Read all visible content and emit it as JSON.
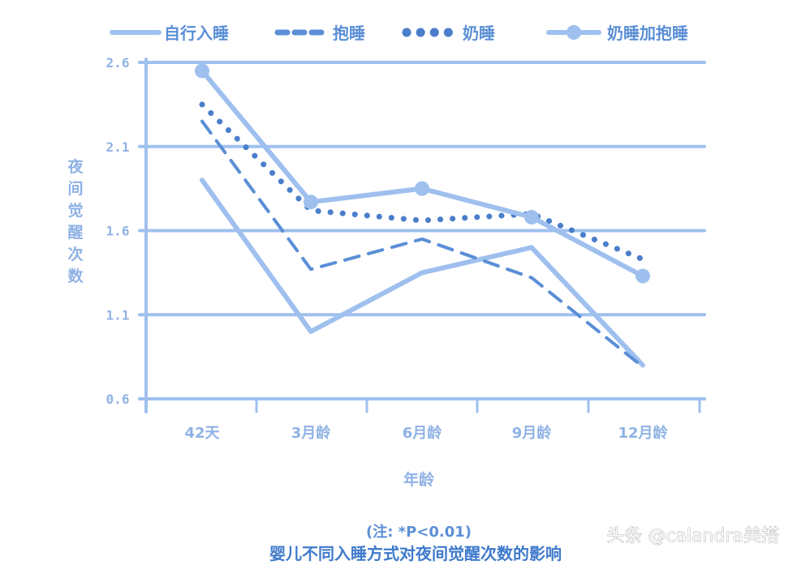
{
  "chart_data": {
    "type": "line",
    "categories": [
      "42天",
      "3月龄",
      "6月龄",
      "9月龄",
      "12月龄"
    ],
    "ylabel": "夜间觉醒次数",
    "xlabel": "年龄",
    "ylim": [
      0.6,
      2.6
    ],
    "yticks": [
      "2.6",
      "2.1",
      "1.6",
      "1.1",
      "0.6"
    ],
    "grid": true,
    "legend_position": "top",
    "series": [
      {
        "name": "自行入睡",
        "style": "solid",
        "color": "#9fc0ee",
        "values": [
          1.9,
          1.0,
          1.35,
          1.5,
          0.8
        ]
      },
      {
        "name": "抱睡",
        "style": "dashed",
        "color": "#5b8fd6",
        "values": [
          2.25,
          1.37,
          1.55,
          1.32,
          0.79
        ]
      },
      {
        "name": "奶睡",
        "style": "dotted",
        "color": "#4a7ecb",
        "values": [
          2.35,
          1.72,
          1.66,
          1.7,
          1.43
        ]
      },
      {
        "name": "奶睡加抱睡",
        "style": "solid-marker",
        "color": "#9fc0ee",
        "values": [
          2.55,
          1.77,
          1.85,
          1.68,
          1.33
        ]
      }
    ]
  },
  "note": "(注: *P<0.01)",
  "caption": "婴儿不同入睡方式对夜间觉醒次数的影响",
  "watermark": "头条 @calandra美搭"
}
